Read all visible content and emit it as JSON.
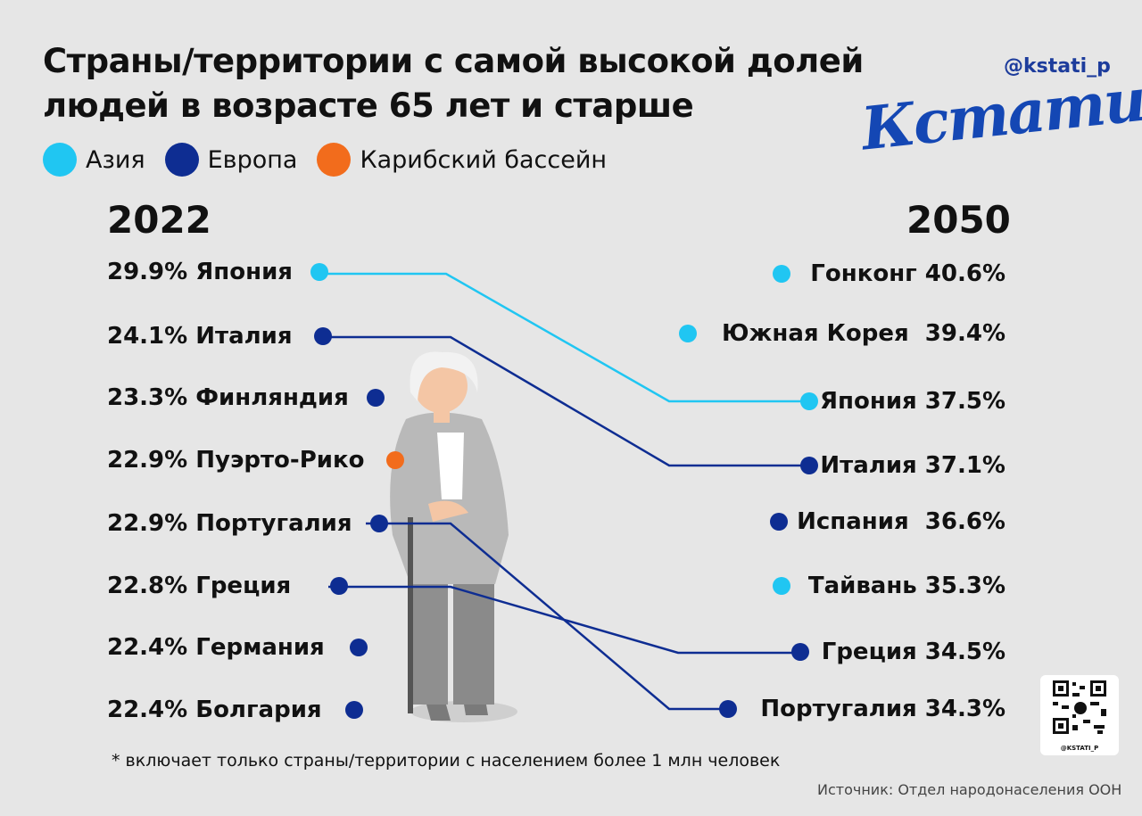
{
  "header": {
    "title_line1": "Страны/территории с самой высокой долей",
    "title_line2": "людей в возрасте 65 лет и старше",
    "handle": "@kstati_p",
    "logo_text": "Кстати,"
  },
  "colors": {
    "asia": "#20c6f2",
    "europe": "#0e2d92",
    "caribbean": "#f26c1c",
    "background": "#e6e6e6"
  },
  "legend": [
    {
      "label": "Азия",
      "region": "asia"
    },
    {
      "label": "Европа",
      "region": "europe"
    },
    {
      "label": "Карибский бассейн",
      "region": "caribbean"
    }
  ],
  "chart_data": {
    "type": "slope",
    "title": "Страны/территории с самой высокой долей людей в возрасте 65 лет и старше",
    "unit": "%",
    "left_year": "2022",
    "right_year": "2050",
    "left": [
      {
        "country": "Япония",
        "value": 29.9,
        "label": "29.9% Япония",
        "region": "asia"
      },
      {
        "country": "Италия",
        "value": 24.1,
        "label": "24.1% Италия",
        "region": "europe"
      },
      {
        "country": "Финляндия",
        "value": 23.3,
        "label": "23.3% Финляндия",
        "region": "europe"
      },
      {
        "country": "Пуэрто-Рико",
        "value": 22.9,
        "label": "22.9% Пуэрто-Рико",
        "region": "caribbean"
      },
      {
        "country": "Португалия",
        "value": 22.9,
        "label": "22.9% Португалия",
        "region": "europe"
      },
      {
        "country": "Греция",
        "value": 22.8,
        "label": "22.8% Греция",
        "region": "europe"
      },
      {
        "country": "Германия",
        "value": 22.4,
        "label": "22.4% Германия",
        "region": "europe"
      },
      {
        "country": "Болгария",
        "value": 22.4,
        "label": "22.4% Болгария",
        "region": "europe"
      }
    ],
    "right": [
      {
        "country": "Гонконг",
        "value": 40.6,
        "label": "Гонконг 40.6%",
        "region": "asia"
      },
      {
        "country": "Южная Корея",
        "value": 39.4,
        "label": "Южная Корея  39.4%",
        "region": "asia"
      },
      {
        "country": "Япония",
        "value": 37.5,
        "label": "Япония 37.5%",
        "region": "asia"
      },
      {
        "country": "Италия",
        "value": 37.1,
        "label": "Италия 37.1%",
        "region": "europe"
      },
      {
        "country": "Испания",
        "value": 36.6,
        "label": "Испания  36.6%",
        "region": "europe"
      },
      {
        "country": "Тайвань",
        "value": 35.3,
        "label": "Тайвань 35.3%",
        "region": "asia"
      },
      {
        "country": "Греция",
        "value": 34.5,
        "label": "Греция 34.5%",
        "region": "europe"
      },
      {
        "country": "Португалия",
        "value": 34.3,
        "label": "Португалия 34.3%",
        "region": "europe"
      }
    ],
    "connections": [
      {
        "country": "Япония",
        "region": "asia"
      },
      {
        "country": "Италия",
        "region": "europe"
      },
      {
        "country": "Португалия",
        "region": "europe"
      },
      {
        "country": "Греция",
        "region": "europe"
      }
    ]
  },
  "footer": {
    "note": "* включает только страны/территории с населением более 1 млн человек",
    "source": "Источник: Отдел народонаселения ООН",
    "qr_label": "@KSTATI_P"
  }
}
